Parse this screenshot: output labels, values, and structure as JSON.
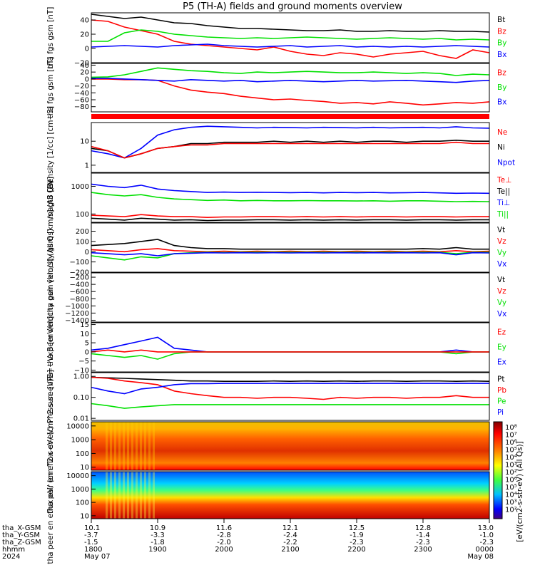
{
  "title": "P5 (TH-A) fields and ground moments overview",
  "colorbar_label": "[eV/(cm2-s-str-eV) (All Qs)]",
  "colors": {
    "black": "#000000",
    "red": "#ff0000",
    "green": "#00e000",
    "blue": "#0000ff"
  },
  "chart_data": [
    {
      "type": "line",
      "ylabel": "tha fgs gsm [nT]",
      "yticks": [
        "40",
        "20",
        "0",
        "−20"
      ],
      "ylim": [
        -20,
        50
      ],
      "legend": [
        {
          "name": "Bt",
          "color": "#000000"
        },
        {
          "name": "Bz",
          "color": "#ff0000"
        },
        {
          "name": "By",
          "color": "#00e000"
        },
        {
          "name": "Bx",
          "color": "#0000ff"
        }
      ],
      "series": [
        {
          "name": "Bt",
          "color": "#000000",
          "values": [
            48,
            45,
            42,
            44,
            40,
            36,
            35,
            32,
            30,
            28,
            28,
            27,
            26,
            25,
            25,
            26,
            24,
            24,
            25,
            24,
            24,
            25,
            24,
            24,
            23
          ]
        },
        {
          "name": "Bz",
          "color": "#ff0000",
          "values": [
            40,
            38,
            30,
            25,
            20,
            10,
            6,
            4,
            2,
            0,
            -2,
            2,
            -4,
            -8,
            -10,
            -6,
            -8,
            -12,
            -8,
            -6,
            -4,
            -10,
            -14,
            -2,
            -6
          ]
        },
        {
          "name": "By",
          "color": "#00e000",
          "values": [
            10,
            10,
            22,
            26,
            24,
            20,
            18,
            16,
            15,
            14,
            15,
            14,
            15,
            16,
            15,
            14,
            13,
            14,
            15,
            14,
            13,
            14,
            12,
            13,
            12
          ]
        },
        {
          "name": "Bx",
          "color": "#0000ff",
          "values": [
            2,
            3,
            4,
            3,
            2,
            4,
            5,
            6,
            4,
            3,
            2,
            3,
            4,
            2,
            3,
            4,
            2,
            3,
            2,
            3,
            2,
            3,
            4,
            3,
            2
          ]
        }
      ]
    },
    {
      "type": "line",
      "ylabel": "tha fgs gsm [nT]",
      "yticks": [
        "40",
        "20",
        "0",
        "−20",
        "−40",
        "−60",
        "−80"
      ],
      "ylim": [
        -95,
        45
      ],
      "legend": [
        {
          "name": "Bz",
          "color": "#ff0000"
        },
        {
          "name": "By",
          "color": "#00e000"
        },
        {
          "name": "Bx",
          "color": "#0000ff"
        }
      ],
      "series": [
        {
          "name": "Bz",
          "color": "#ff0000",
          "values": [
            0,
            0,
            -2,
            -2,
            -4,
            -20,
            -32,
            -38,
            -42,
            -50,
            -55,
            -60,
            -58,
            -62,
            -65,
            -70,
            -68,
            -72,
            -66,
            -70,
            -75,
            -72,
            -68,
            -70,
            -66
          ]
        },
        {
          "name": "By",
          "color": "#00e000",
          "values": [
            5,
            6,
            12,
            22,
            32,
            28,
            24,
            22,
            18,
            16,
            20,
            18,
            20,
            22,
            20,
            18,
            18,
            20,
            18,
            16,
            18,
            16,
            10,
            14,
            12
          ]
        },
        {
          "name": "Bx",
          "color": "#0000ff",
          "values": [
            2,
            2,
            0,
            -2,
            -4,
            -6,
            -2,
            -4,
            -6,
            -4,
            -8,
            -6,
            -4,
            -6,
            -8,
            -6,
            -4,
            -6,
            -5,
            -4,
            -6,
            -8,
            -10,
            -6,
            -4
          ]
        }
      ]
    },
    {
      "type": "line",
      "ylabel": "Density [1/cc] [cm−3]",
      "yticks": [
        "10",
        "1"
      ],
      "ylim": [
        0.5,
        60
      ],
      "yscale": "log",
      "legend": [
        {
          "name": "Ne",
          "color": "#ff0000"
        },
        {
          "name": "Ni",
          "color": "#000000"
        },
        {
          "name": "Npot",
          "color": "#0000ff"
        }
      ],
      "series": [
        {
          "name": "Npot",
          "color": "#0000ff",
          "values": [
            4,
            3,
            2,
            5,
            18,
            30,
            38,
            42,
            40,
            38,
            36,
            38,
            37,
            36,
            38,
            37,
            36,
            38,
            36,
            37,
            38,
            36,
            40,
            36,
            35
          ]
        },
        {
          "name": "Ni",
          "color": "#000000",
          "values": [
            5,
            4,
            2,
            3,
            5,
            6,
            8,
            8,
            9,
            9,
            9,
            10,
            9,
            10,
            9,
            10,
            9,
            10,
            10,
            9,
            10,
            10,
            11,
            10,
            10
          ]
        },
        {
          "name": "Ne",
          "color": "#ff0000",
          "values": [
            6,
            4,
            2,
            3,
            5,
            6,
            7,
            7,
            8,
            8,
            8,
            8,
            8,
            8,
            8,
            8,
            8,
            8,
            8,
            8,
            8,
            8,
            9,
            8,
            8
          ]
        }
      ]
    },
    {
      "type": "line",
      "ylabel": "magt3 [eV]",
      "yticks": [
        "1000",
        "100"
      ],
      "ylim": [
        50,
        3000
      ],
      "yscale": "log",
      "legend": [
        {
          "name": "Te⊥",
          "color": "#ff0000"
        },
        {
          "name": "Te||",
          "color": "#000000"
        },
        {
          "name": "Ti⊥",
          "color": "#0000ff"
        },
        {
          "name": "Ti||",
          "color": "#00e000"
        }
      ],
      "series": [
        {
          "name": "Ti⊥",
          "color": "#0000ff",
          "values": [
            1200,
            1000,
            900,
            1100,
            800,
            700,
            650,
            600,
            620,
            600,
            610,
            600,
            590,
            600,
            580,
            600,
            590,
            600,
            580,
            590,
            600,
            580,
            560,
            570,
            560
          ]
        },
        {
          "name": "Ti||",
          "color": "#00e000",
          "values": [
            600,
            500,
            450,
            500,
            400,
            350,
            330,
            310,
            320,
            300,
            310,
            300,
            300,
            305,
            300,
            300,
            295,
            300,
            290,
            300,
            300,
            290,
            280,
            285,
            280
          ]
        },
        {
          "name": "Te⊥",
          "color": "#ff0000",
          "values": [
            90,
            85,
            80,
            95,
            85,
            80,
            80,
            75,
            78,
            78,
            80,
            80,
            78,
            80,
            78,
            80,
            78,
            80,
            80,
            78,
            80,
            80,
            78,
            80,
            80
          ]
        },
        {
          "name": "Te||",
          "color": "#000000",
          "values": [
            70,
            65,
            60,
            70,
            65,
            60,
            62,
            58,
            60,
            60,
            62,
            62,
            60,
            62,
            60,
            62,
            60,
            62,
            62,
            60,
            62,
            62,
            60,
            62,
            62
          ]
        }
      ]
    },
    {
      "type": "line",
      "ylabel": "tha peir velocity gsm [km/s] (All Qs)",
      "yticks": [
        "200",
        "100",
        "0",
        "−100",
        "−200"
      ],
      "ylim": [
        -200,
        280
      ],
      "legend": [
        {
          "name": "Vt",
          "color": "#000000"
        },
        {
          "name": "Vz",
          "color": "#ff0000"
        },
        {
          "name": "Vy",
          "color": "#00e000"
        },
        {
          "name": "Vx",
          "color": "#0000ff"
        }
      ],
      "series": [
        {
          "name": "Vt",
          "color": "#000000",
          "values": [
            60,
            70,
            80,
            100,
            120,
            60,
            40,
            30,
            30,
            25,
            25,
            25,
            25,
            25,
            25,
            25,
            25,
            25,
            25,
            25,
            30,
            25,
            40,
            25,
            25
          ]
        },
        {
          "name": "Vz",
          "color": "#ff0000",
          "values": [
            20,
            10,
            0,
            20,
            30,
            10,
            5,
            0,
            5,
            0,
            5,
            0,
            5,
            0,
            5,
            0,
            5,
            0,
            5,
            0,
            5,
            0,
            10,
            0,
            5
          ]
        },
        {
          "name": "Vy",
          "color": "#00e000",
          "values": [
            -40,
            -60,
            -80,
            -50,
            -60,
            -20,
            -10,
            -5,
            -8,
            -5,
            -6,
            -5,
            -6,
            -5,
            -6,
            -5,
            -6,
            -5,
            -6,
            -5,
            -6,
            -5,
            -20,
            -5,
            -6
          ]
        },
        {
          "name": "Vx",
          "color": "#0000ff",
          "values": [
            -10,
            -20,
            -30,
            -20,
            -40,
            -20,
            -15,
            -10,
            -12,
            -10,
            -12,
            -10,
            -12,
            -10,
            -12,
            -10,
            -12,
            -10,
            -12,
            -10,
            -12,
            -10,
            -30,
            -10,
            -12
          ]
        }
      ]
    },
    {
      "type": "line",
      "ylabel": "tha peer velocity gsm [km/s] (All Qs)",
      "yticks": [
        "−200",
        "−400",
        "−600",
        "−800",
        "−1000",
        "−1200",
        "−1400"
      ],
      "ylim": [
        -1450,
        -80
      ],
      "legend": [
        {
          "name": "Vt",
          "color": "#000000"
        },
        {
          "name": "Vz",
          "color": "#ff0000"
        },
        {
          "name": "Vy",
          "color": "#00e000"
        },
        {
          "name": "Vx",
          "color": "#0000ff"
        }
      ],
      "series": []
    },
    {
      "type": "line",
      "ylabel": "E=−VxB [mV/m]",
      "yticks": [
        "15",
        "10",
        "5",
        "0",
        "−5",
        "−10"
      ],
      "ylim": [
        -11,
        16
      ],
      "legend": [
        {
          "name": "Ez",
          "color": "#ff0000"
        },
        {
          "name": "Ey",
          "color": "#00e000"
        },
        {
          "name": "Ex",
          "color": "#0000ff"
        }
      ],
      "series": [
        {
          "name": "Ex",
          "color": "#0000ff",
          "values": [
            1,
            2,
            4,
            6,
            8,
            2,
            1,
            0,
            0,
            0,
            0,
            0,
            0,
            0,
            0,
            0,
            0,
            0,
            0,
            0,
            0,
            0,
            1,
            0,
            0
          ]
        },
        {
          "name": "Ey",
          "color": "#00e000",
          "values": [
            -1,
            -2,
            -3,
            -2,
            -4,
            -1,
            0,
            0,
            0,
            0,
            0,
            0,
            0,
            0,
            0,
            0,
            0,
            0,
            0,
            0,
            0,
            0,
            -1,
            0,
            0
          ]
        },
        {
          "name": "Ez",
          "color": "#ff0000",
          "values": [
            0,
            1,
            0,
            1,
            0,
            0,
            0,
            0,
            0,
            0,
            0,
            0,
            0,
            0,
            0,
            0,
            0,
            0,
            0,
            0,
            0,
            0,
            0,
            0,
            0
          ]
        }
      ]
    },
    {
      "type": "line",
      "ylabel": "Pressure [nPa]",
      "yticks": [
        "1.00",
        "0.10",
        "0.01"
      ],
      "ylim": [
        0.008,
        1.5
      ],
      "yscale": "log",
      "legend": [
        {
          "name": "Pt",
          "color": "#000000"
        },
        {
          "name": "Pb",
          "color": "#ff0000"
        },
        {
          "name": "Pe",
          "color": "#00e000"
        },
        {
          "name": "Pi",
          "color": "#0000ff"
        }
      ],
      "series": [
        {
          "name": "Pt",
          "color": "#000000",
          "values": [
            0.9,
            0.85,
            0.8,
            0.75,
            0.7,
            0.65,
            0.6,
            0.6,
            0.58,
            0.58,
            0.58,
            0.6,
            0.58,
            0.6,
            0.58,
            0.6,
            0.58,
            0.6,
            0.6,
            0.58,
            0.6,
            0.6,
            0.58,
            0.6,
            0.58
          ]
        },
        {
          "name": "Pb",
          "color": "#ff0000",
          "values": [
            0.9,
            0.8,
            0.6,
            0.5,
            0.4,
            0.2,
            0.15,
            0.12,
            0.1,
            0.1,
            0.09,
            0.1,
            0.1,
            0.09,
            0.08,
            0.1,
            0.09,
            0.1,
            0.1,
            0.09,
            0.1,
            0.1,
            0.12,
            0.1,
            0.1
          ]
        },
        {
          "name": "Pe",
          "color": "#00e000",
          "values": [
            0.05,
            0.04,
            0.03,
            0.035,
            0.04,
            0.045,
            0.045,
            0.045,
            0.045,
            0.045,
            0.045,
            0.045,
            0.045,
            0.045,
            0.045,
            0.045,
            0.045,
            0.045,
            0.045,
            0.045,
            0.045,
            0.045,
            0.045,
            0.045,
            0.045
          ]
        },
        {
          "name": "Pi",
          "color": "#0000ff",
          "values": [
            0.3,
            0.2,
            0.15,
            0.25,
            0.3,
            0.4,
            0.45,
            0.45,
            0.46,
            0.46,
            0.46,
            0.46,
            0.46,
            0.46,
            0.46,
            0.46,
            0.46,
            0.46,
            0.46,
            0.46,
            0.46,
            0.46,
            0.46,
            0.46,
            0.46
          ]
        }
      ]
    },
    {
      "type": "heatmap",
      "ylabel": "tha peir en eflux eV/ (cm^2-s-sr-eV)",
      "yticks": [
        "10000",
        "1000",
        "100",
        "10"
      ],
      "ylim": [
        6,
        20000
      ],
      "yscale": "log"
    },
    {
      "type": "heatmap",
      "ylabel": "tha peer en eflux eV/ (cm^2-s-sr-eV)",
      "yticks": [
        "10000",
        "1000",
        "100",
        "10"
      ],
      "ylim": [
        6,
        20000
      ],
      "yscale": "log"
    }
  ],
  "colorbar_ticks": [
    "10⁸",
    "10⁷",
    "10⁶",
    "10⁵",
    "10⁴",
    "10³",
    "10²",
    "10⁶",
    "10⁵",
    "10⁴",
    "10³",
    "10²"
  ],
  "x_axis": {
    "row_labels": [
      "tha_X-GSM",
      "tha_Y-GSM",
      "tha_Z-GSM",
      "hhmm",
      "2024"
    ],
    "columns": [
      [
        "10.1",
        "-3.7",
        "-1.5",
        "1800",
        "May 07"
      ],
      [
        "10.9",
        "-3.3",
        "-1.8",
        "1900",
        ""
      ],
      [
        "11.6",
        "-2.8",
        "-2.0",
        "2000",
        ""
      ],
      [
        "12.1",
        "-2.4",
        "-2.2",
        "2100",
        ""
      ],
      [
        "12.5",
        "-1.9",
        "-2.3",
        "2200",
        ""
      ],
      [
        "12.8",
        "-1.4",
        "-2.3",
        "2300",
        ""
      ],
      [
        "13.0",
        "-1.0",
        "-2.3",
        "0000",
        "May 08"
      ]
    ]
  }
}
